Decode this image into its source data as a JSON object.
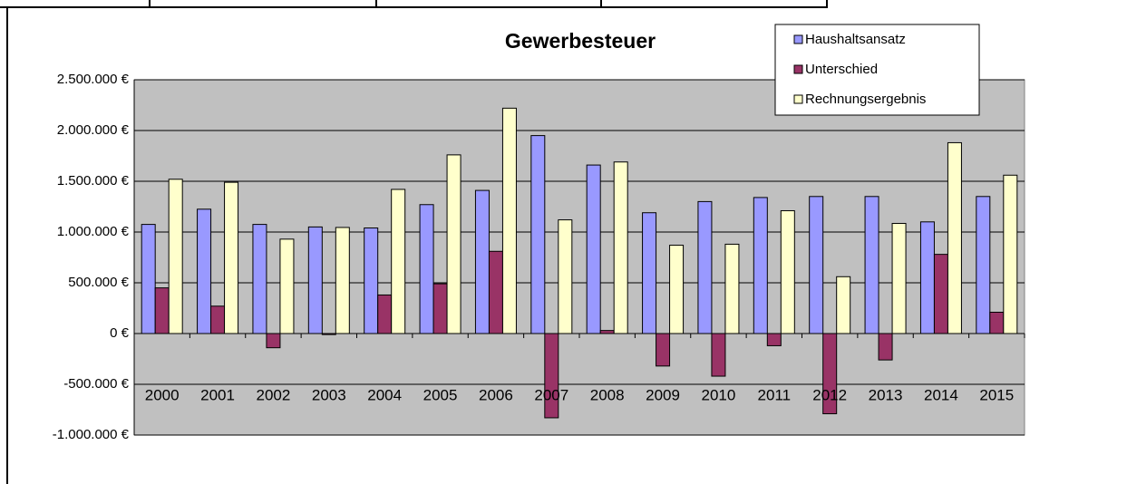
{
  "chart_data": {
    "type": "bar",
    "title": "Gewerbesteuer",
    "categories": [
      "2000",
      "2001",
      "2002",
      "2003",
      "2004",
      "2005",
      "2006",
      "2007",
      "2008",
      "2009",
      "2010",
      "2011",
      "2012",
      "2013",
      "2014",
      "2015"
    ],
    "series": [
      {
        "name": "Haushaltsansatz",
        "color": "#9999ff",
        "values": [
          1075000,
          1225000,
          1075000,
          1050000,
          1040000,
          1270000,
          1410000,
          1950000,
          1660000,
          1190000,
          1300000,
          1340000,
          1350000,
          1350000,
          1100000,
          1350000
        ]
      },
      {
        "name": "Unterschied",
        "color": "#993366",
        "values": [
          450000,
          270000,
          -140000,
          -10000,
          380000,
          490000,
          810000,
          -830000,
          30000,
          -320000,
          -420000,
          -120000,
          -790000,
          -260000,
          780000,
          210000
        ]
      },
      {
        "name": "Rechnungsergebnis",
        "color": "#ffffcc",
        "values": [
          1520000,
          1490000,
          930000,
          1045000,
          1420000,
          1760000,
          2220000,
          1120000,
          1690000,
          870000,
          880000,
          1210000,
          560000,
          1085000,
          1880000,
          1560000
        ]
      }
    ],
    "ylim": [
      -1000000,
      2500000
    ],
    "yticks": [
      {
        "value": -1000000,
        "label": "-1.000.000 €"
      },
      {
        "value": -500000,
        "label": "-500.000 €"
      },
      {
        "value": 0,
        "label": "0 €"
      },
      {
        "value": 500000,
        "label": "500.000 €"
      },
      {
        "value": 1000000,
        "label": "1.000.000 €"
      },
      {
        "value": 1500000,
        "label": "1.500.000 €"
      },
      {
        "value": 2000000,
        "label": "2.000.000 €"
      },
      {
        "value": 2500000,
        "label": "2.500.000 €"
      }
    ],
    "grid": true,
    "legend": "top-right"
  }
}
